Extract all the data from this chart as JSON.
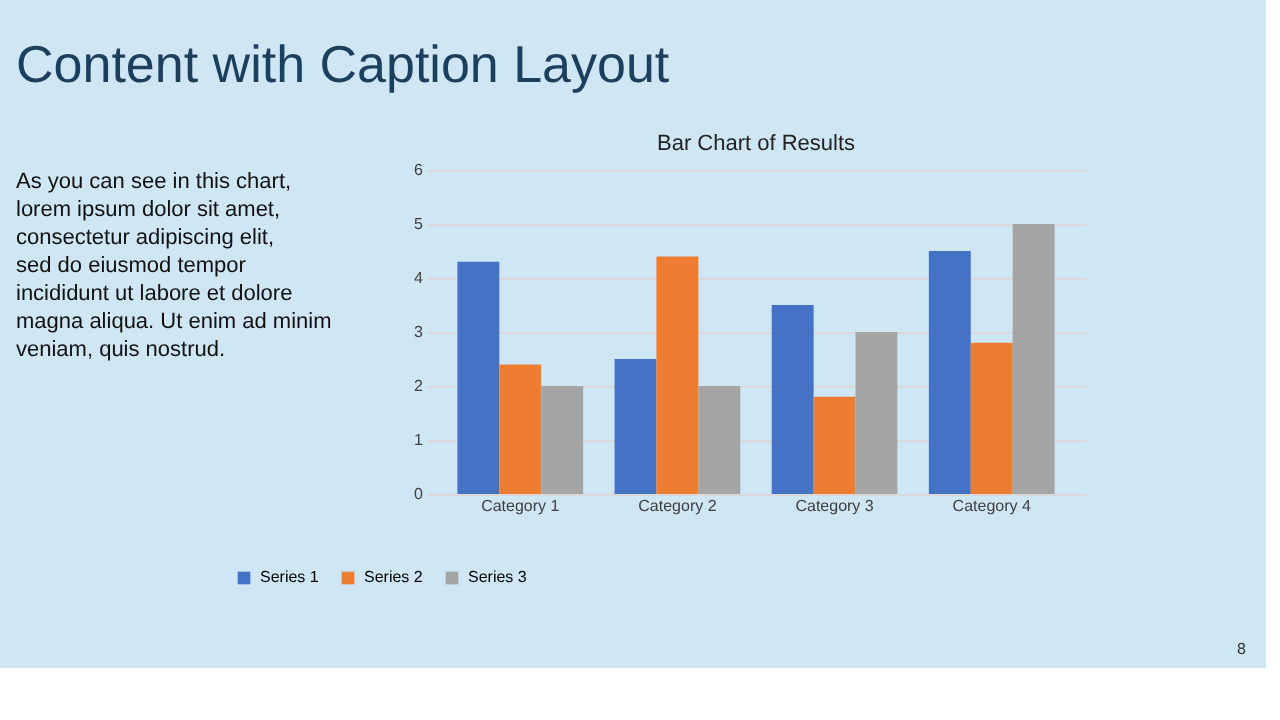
{
  "chart_data": {
    "type": "bar",
    "title": "Content with Caption Layout",
    "subtitle": "Bar Chart of Results",
    "annotations": [
      "As you can see in this chart, lorem ipsum dolor sit amet, consectetur adipiscing elit, sed do eiusmod tempor incididunt ut labore et dolore magna aliqua. Ut enim ad minim veniam, quis nostrud.",
      "8"
    ],
    "categories": [
      "Category 1",
      "Category 2",
      "Category 3",
      "Category 4"
    ],
    "series": [
      {
        "name": "Series 1",
        "color": "#4472c4",
        "values": [
          4.3,
          2.5,
          3.5,
          4.5
        ]
      },
      {
        "name": "Series 2",
        "color": "#ed7d31",
        "values": [
          2.4,
          4.4,
          1.8,
          2.8
        ]
      },
      {
        "name": "Series 3",
        "color": "#a5a5a5",
        "values": [
          2,
          2,
          3,
          5
        ]
      }
    ],
    "ylim": [
      0,
      6
    ],
    "yticks": [
      0,
      1,
      2,
      3,
      4,
      5,
      6
    ],
    "grid": "y",
    "legend": "bottom"
  }
}
